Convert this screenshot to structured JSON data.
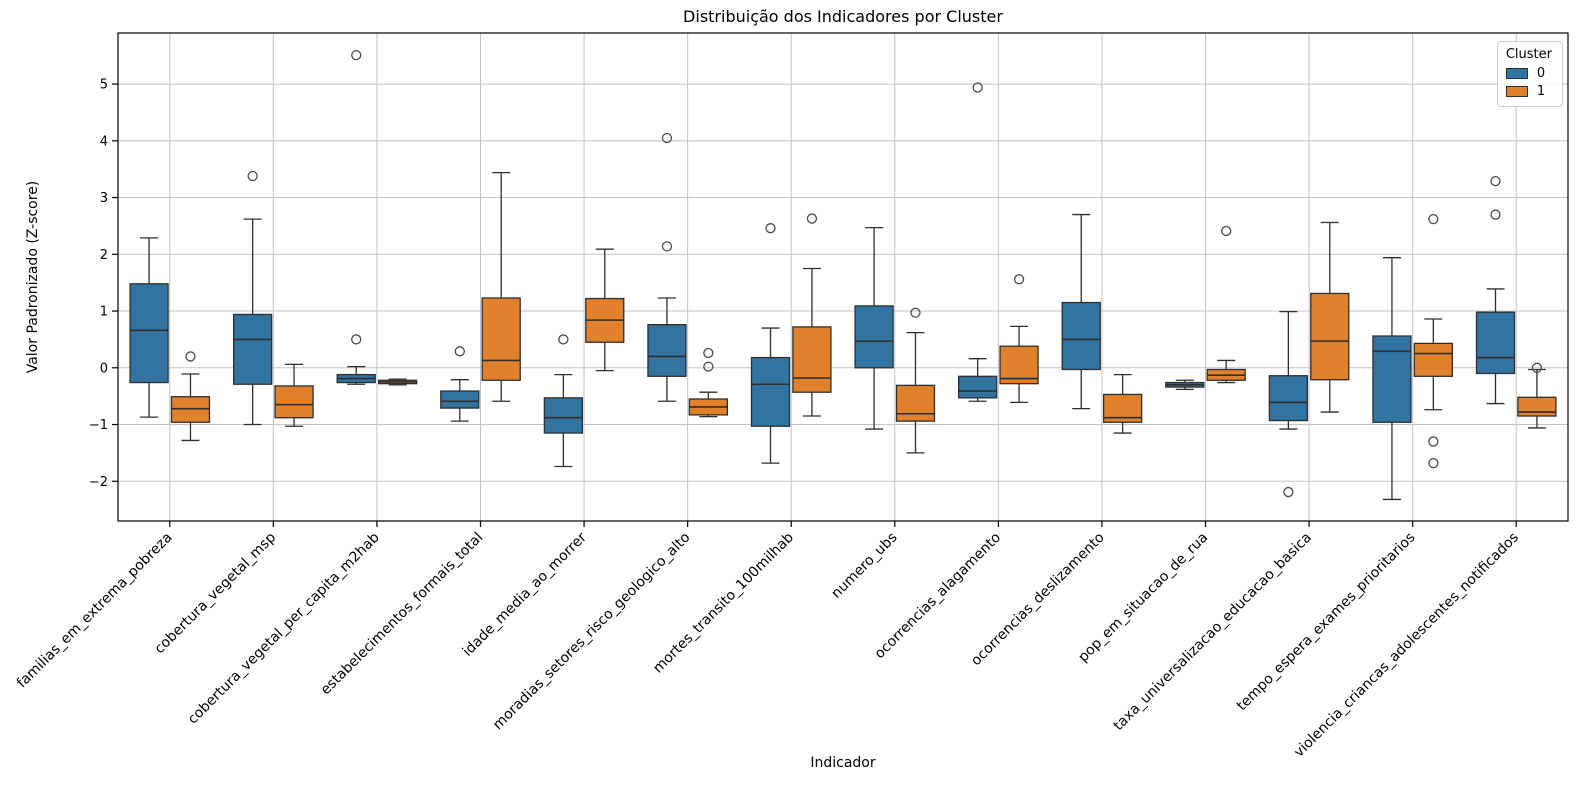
{
  "colors": {
    "cluster0": "#3274a1",
    "cluster1": "#e1812c",
    "box_edge": "#2e2e2e",
    "outlier_edge": "#4a4a4a",
    "grid": "#c3c3c3",
    "spine": "#000000"
  },
  "chart_data": {
    "type": "boxplot",
    "title": "Distribuição dos Indicadores por Cluster",
    "xlabel": "Indicador",
    "ylabel": "Valor Padronizado (Z-score)",
    "ylim": [
      -2.7,
      5.9
    ],
    "yticks": [
      -2,
      -1,
      0,
      1,
      2,
      3,
      4,
      5
    ],
    "grid": true,
    "legend": {
      "title": "Cluster",
      "position": "upper right",
      "entries": [
        {
          "label": "0",
          "color": "#3274a1"
        },
        {
          "label": "1",
          "color": "#e1812c"
        }
      ]
    },
    "categories": [
      "familias_em_extrema_pobreza",
      "cobertura_vegetal_msp",
      "cobertura_vegetal_per_capita_m2hab",
      "estabelecimentos_formais_total",
      "idade_media_ao_morrer",
      "moradias_setores_risco_geologico_alto",
      "mortes_transito_100milhab",
      "numero_ubs",
      "ocorrencias_alagamento",
      "ocorrencias_deslizamento",
      "pop_em_situacao_de_rua",
      "taxa_universalizacao_educacao_basica",
      "tempo_espera_exames_prioritarios",
      "violencia_criancas_adolescentes_notificados"
    ],
    "series": [
      {
        "name": "0",
        "color": "#3274a1",
        "boxes": [
          {
            "whislo": -0.87,
            "q1": -0.26,
            "med": 0.66,
            "q3": 1.48,
            "whishi": 2.29,
            "outliers": []
          },
          {
            "whislo": -1.0,
            "q1": -0.29,
            "med": 0.5,
            "q3": 0.94,
            "whishi": 2.62,
            "outliers": [
              3.38
            ]
          },
          {
            "whislo": -0.29,
            "q1": -0.26,
            "med": -0.19,
            "q3": -0.12,
            "whishi": 0.02,
            "outliers": [
              5.51,
              0.5
            ]
          },
          {
            "whislo": -0.94,
            "q1": -0.71,
            "med": -0.59,
            "q3": -0.41,
            "whishi": -0.21,
            "outliers": [
              0.29
            ]
          },
          {
            "whislo": -1.74,
            "q1": -1.15,
            "med": -0.88,
            "q3": -0.53,
            "whishi": -0.12,
            "outliers": [
              0.5
            ]
          },
          {
            "whislo": -0.59,
            "q1": -0.15,
            "med": 0.2,
            "q3": 0.76,
            "whishi": 1.23,
            "outliers": [
              4.05,
              2.14
            ]
          },
          {
            "whislo": -1.68,
            "q1": -1.03,
            "med": -0.29,
            "q3": 0.18,
            "whishi": 0.7,
            "outliers": [
              2.46
            ]
          },
          {
            "whislo": -1.08,
            "q1": 0.0,
            "med": 0.47,
            "q3": 1.09,
            "whishi": 2.47,
            "outliers": []
          },
          {
            "whislo": -0.59,
            "q1": -0.53,
            "med": -0.41,
            "q3": -0.15,
            "whishi": 0.16,
            "outliers": [
              4.94
            ]
          },
          {
            "whislo": -0.72,
            "q1": -0.03,
            "med": 0.5,
            "q3": 1.15,
            "whishi": 2.7,
            "outliers": []
          },
          {
            "whislo": -0.38,
            "q1": -0.34,
            "med": -0.3,
            "q3": -0.26,
            "whishi": -0.22,
            "outliers": []
          },
          {
            "whislo": -1.08,
            "q1": -0.93,
            "med": -0.61,
            "q3": -0.14,
            "whishi": 0.99,
            "outliers": [
              -2.19
            ]
          },
          {
            "whislo": -2.32,
            "q1": -0.96,
            "med": 0.29,
            "q3": 0.56,
            "whishi": 1.94,
            "outliers": []
          },
          {
            "whislo": -0.63,
            "q1": -0.1,
            "med": 0.18,
            "q3": 0.98,
            "whishi": 1.39,
            "outliers": [
              3.29,
              2.7
            ]
          }
        ]
      },
      {
        "name": "1",
        "color": "#e1812c",
        "boxes": [
          {
            "whislo": -1.28,
            "q1": -0.96,
            "med": -0.72,
            "q3": -0.51,
            "whishi": -0.11,
            "outliers": [
              0.2
            ]
          },
          {
            "whislo": -1.03,
            "q1": -0.88,
            "med": -0.65,
            "q3": -0.32,
            "whishi": 0.06,
            "outliers": []
          },
          {
            "whislo": -0.3,
            "q1": -0.28,
            "med": -0.25,
            "q3": -0.22,
            "whishi": -0.2,
            "outliers": []
          },
          {
            "whislo": -0.59,
            "q1": -0.22,
            "med": 0.13,
            "q3": 1.23,
            "whishi": 3.44,
            "outliers": []
          },
          {
            "whislo": -0.05,
            "q1": 0.45,
            "med": 0.84,
            "q3": 1.22,
            "whishi": 2.09,
            "outliers": []
          },
          {
            "whislo": -0.86,
            "q1": -0.83,
            "med": -0.69,
            "q3": -0.55,
            "whishi": -0.43,
            "outliers": [
              0.26,
              0.02
            ]
          },
          {
            "whislo": -0.85,
            "q1": -0.43,
            "med": -0.18,
            "q3": 0.72,
            "whishi": 1.75,
            "outliers": [
              2.63
            ]
          },
          {
            "whislo": -1.5,
            "q1": -0.94,
            "med": -0.81,
            "q3": -0.31,
            "whishi": 0.62,
            "outliers": [
              0.97
            ]
          },
          {
            "whislo": -0.61,
            "q1": -0.28,
            "med": -0.19,
            "q3": 0.38,
            "whishi": 0.73,
            "outliers": [
              1.56
            ]
          },
          {
            "whislo": -1.15,
            "q1": -0.96,
            "med": -0.88,
            "q3": -0.47,
            "whishi": -0.12,
            "outliers": []
          },
          {
            "whislo": -0.26,
            "q1": -0.22,
            "med": -0.13,
            "q3": -0.03,
            "whishi": 0.13,
            "outliers": [
              2.41
            ]
          },
          {
            "whislo": -0.78,
            "q1": -0.21,
            "med": 0.47,
            "q3": 1.31,
            "whishi": 2.56,
            "outliers": []
          },
          {
            "whislo": -0.74,
            "q1": -0.15,
            "med": 0.25,
            "q3": 0.43,
            "whishi": 0.86,
            "outliers": [
              2.62,
              -1.3,
              -1.68
            ]
          },
          {
            "whislo": -1.06,
            "q1": -0.85,
            "med": -0.78,
            "q3": -0.52,
            "whishi": -0.03,
            "outliers": [
              0.0
            ]
          }
        ]
      }
    ]
  }
}
